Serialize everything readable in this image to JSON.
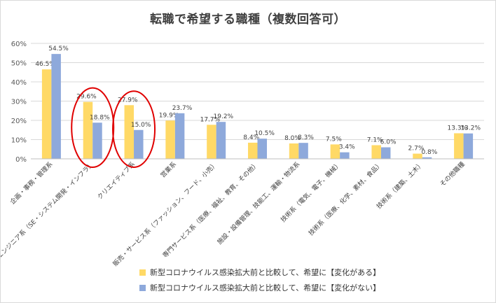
{
  "chart_data": {
    "type": "bar",
    "title": "転職で希望する職種（複数回答可）",
    "categories": [
      "企画・事務・管理系",
      "ITエンジニア系（SE・システム開発・インフラ）",
      "クリエイティブ系",
      "営業系",
      "販売・サービス系（ファッション、フード、小売）",
      "専門サービス系（医療、福祉、教育、その他）",
      "施設・設備管理、技能工、運輸・物流系",
      "技術系（電気、電子、機械）",
      "技術系（医療、化学、素材、食品）",
      "技術系（建築、土木）",
      "その他職種"
    ],
    "series": [
      {
        "name": "新型コロナウイルス感染拡大前と比較して、希望に【変化がある】",
        "color": "#FFD966",
        "values": [
          46.5,
          29.6,
          27.9,
          19.9,
          17.7,
          8.4,
          8.0,
          7.5,
          7.1,
          2.7,
          13.3
        ],
        "labels": [
          "46.5%",
          "29.6%",
          "27.9%",
          "19.9%",
          "17.7%",
          "8.4%",
          "8.0%",
          "7.5%",
          "7.1%",
          "2.7%",
          "13.3%"
        ]
      },
      {
        "name": "新型コロナウイルス感染拡大前と比較して、希望に【変化がない】",
        "color": "#8EA9DB",
        "values": [
          54.5,
          18.8,
          15.0,
          23.7,
          19.2,
          10.5,
          8.3,
          3.4,
          6.0,
          0.8,
          13.2
        ],
        "labels": [
          "54.5%",
          "18.8%",
          "15.0%",
          "23.7%",
          "19.2%",
          "10.5%",
          "8.3%",
          "3.4%",
          "6.0%",
          "0.8%",
          "13.2%"
        ]
      }
    ],
    "ylim": [
      0,
      60
    ],
    "yticks": [
      "0%",
      "10%",
      "20%",
      "30%",
      "40%",
      "50%",
      "60%"
    ],
    "grid": true,
    "legend": "bottom",
    "highlight_categories": [
      1,
      2
    ],
    "highlight_color": "#E00000"
  }
}
